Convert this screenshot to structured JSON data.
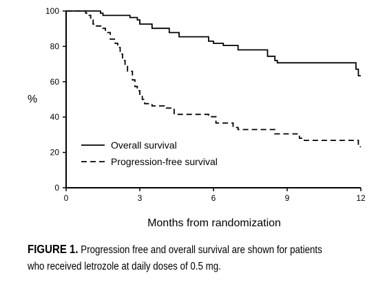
{
  "chart_data": {
    "type": "line",
    "xlabel": "Months from randomization",
    "ylabel": "%",
    "xlim": [
      0,
      12
    ],
    "ylim": [
      0,
      100
    ],
    "xticks": [
      0,
      3,
      6,
      9,
      12
    ],
    "yticks": [
      0,
      20,
      40,
      60,
      80,
      100
    ],
    "grid": false,
    "legend_position": "lower-left",
    "series": [
      {
        "name": "Overall survival",
        "style": "solid",
        "color": "#000000",
        "step": true,
        "points": [
          [
            0,
            100
          ],
          [
            1.1,
            100
          ],
          [
            1.4,
            98.8
          ],
          [
            1.5,
            97.5
          ],
          [
            2.6,
            96.3
          ],
          [
            2.9,
            95
          ],
          [
            3.0,
            92.6
          ],
          [
            3.5,
            90.2
          ],
          [
            3.6,
            90.2
          ],
          [
            4.2,
            87.8
          ],
          [
            4.6,
            85.4
          ],
          [
            5.7,
            85.4
          ],
          [
            5.8,
            82.9
          ],
          [
            6.0,
            81.7
          ],
          [
            6.4,
            80.5
          ],
          [
            7.0,
            78
          ],
          [
            8.2,
            74.4
          ],
          [
            8.5,
            72
          ],
          [
            8.6,
            70.7
          ],
          [
            11.6,
            70.7
          ],
          [
            11.8,
            67.1
          ],
          [
            11.9,
            63.4
          ],
          [
            12,
            63.4
          ]
        ]
      },
      {
        "name": "Progression-free survival",
        "style": "dashed",
        "color": "#000000",
        "step": true,
        "points": [
          [
            0,
            100
          ],
          [
            0.8,
            98.8
          ],
          [
            0.9,
            97.5
          ],
          [
            1.0,
            95
          ],
          [
            1.1,
            92.6
          ],
          [
            1.2,
            91.5
          ],
          [
            1.5,
            90.2
          ],
          [
            1.6,
            87.8
          ],
          [
            1.8,
            84.1
          ],
          [
            2.0,
            81.7
          ],
          [
            2.1,
            79.3
          ],
          [
            2.2,
            75.6
          ],
          [
            2.3,
            72
          ],
          [
            2.4,
            69.5
          ],
          [
            2.5,
            65.9
          ],
          [
            2.7,
            61
          ],
          [
            2.8,
            57.3
          ],
          [
            2.9,
            54.9
          ],
          [
            3.0,
            52.4
          ],
          [
            3.1,
            50
          ],
          [
            3.2,
            47.6
          ],
          [
            3.5,
            46.3
          ],
          [
            4.0,
            45.1
          ],
          [
            4.4,
            41.5
          ],
          [
            5.5,
            41.5
          ],
          [
            5.8,
            40.2
          ],
          [
            6.1,
            36.6
          ],
          [
            6.8,
            34.1
          ],
          [
            7.0,
            32.9
          ],
          [
            7.3,
            32.9
          ],
          [
            8.5,
            30.5
          ],
          [
            9.5,
            28
          ],
          [
            9.7,
            26.8
          ],
          [
            11.9,
            23.2
          ],
          [
            12,
            23.2
          ]
        ]
      }
    ]
  },
  "caption": {
    "label": "FIGURE 1.",
    "line1": "Progression free and overall survival are shown for patients",
    "line2": "who received letrozole at daily doses of 0.5 mg."
  }
}
